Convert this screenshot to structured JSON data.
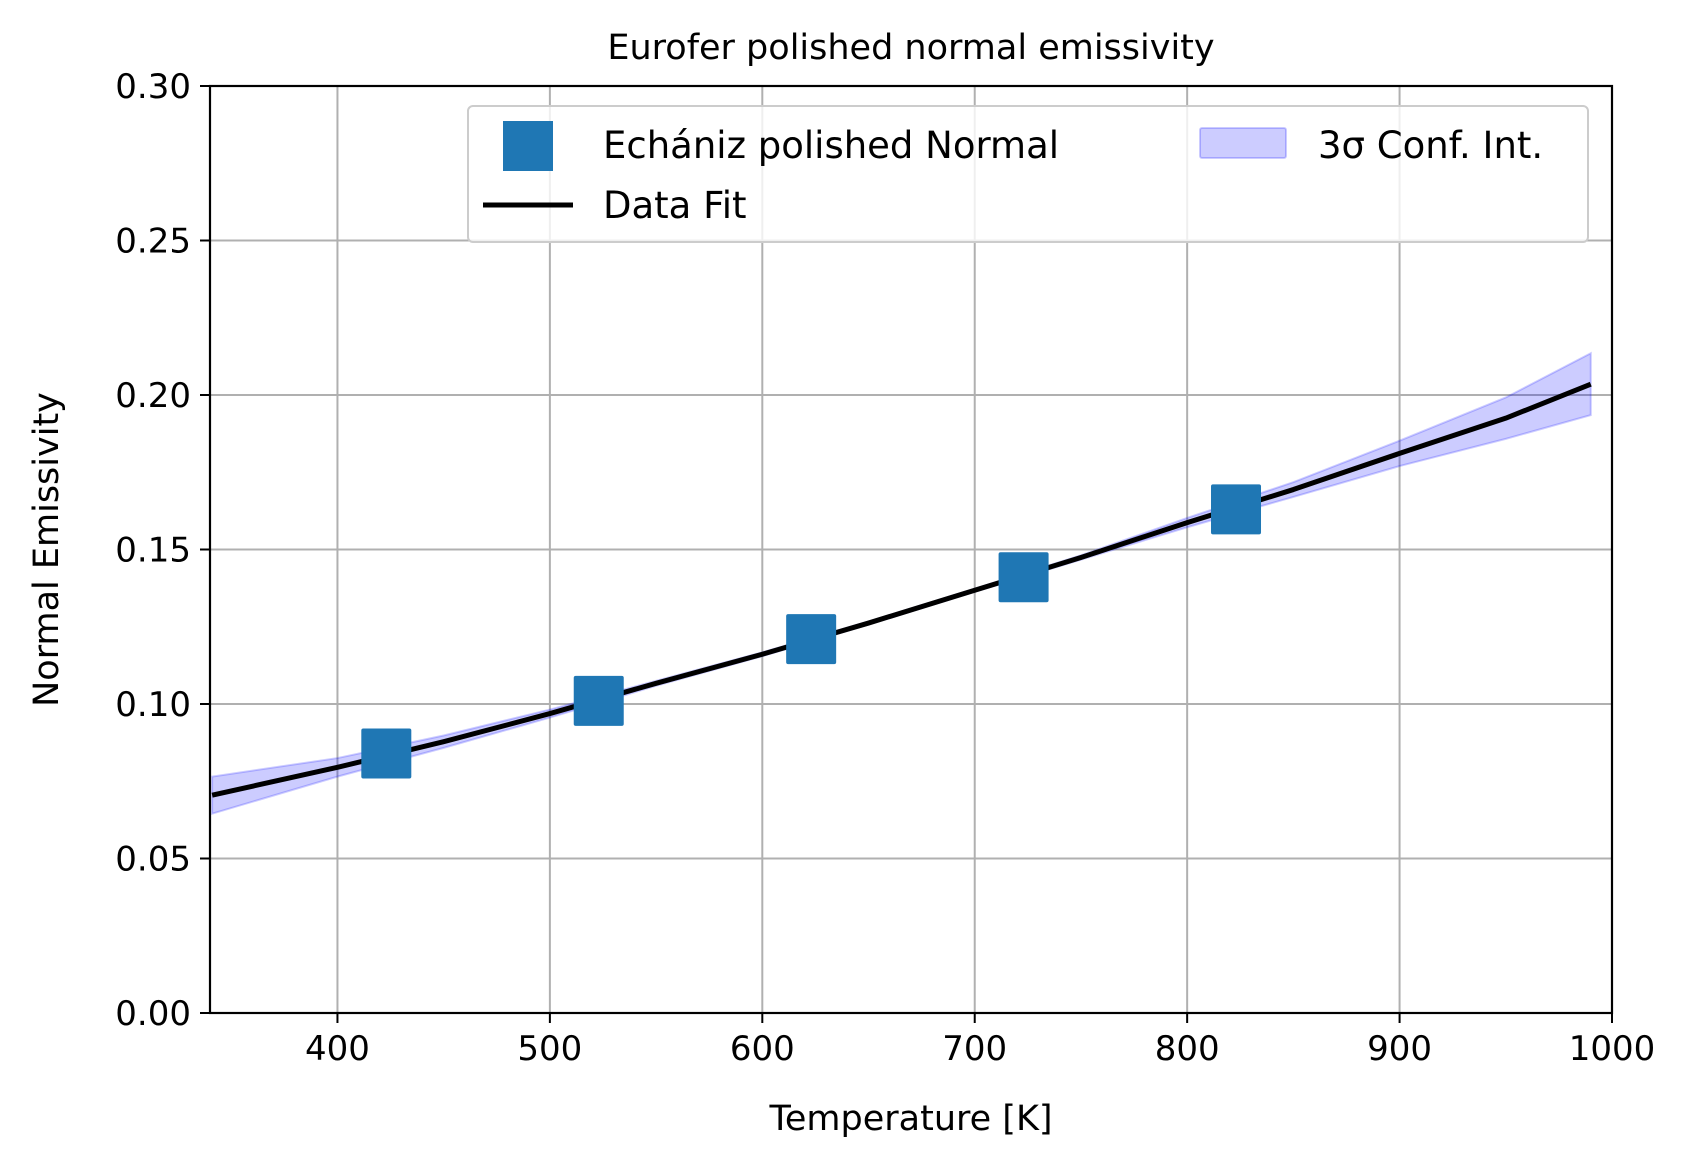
{
  "chart_data": {
    "type": "line",
    "title": "Eurofer polished normal emissivity",
    "xlabel": "Temperature [K]",
    "ylabel": "Normal Emissivity",
    "xlim": [
      340,
      1000
    ],
    "ylim": [
      0.0,
      0.3
    ],
    "xticks": [
      400,
      500,
      600,
      700,
      800,
      900,
      1000
    ],
    "xtick_labels": [
      "400",
      "500",
      "600",
      "700",
      "800",
      "900",
      "1000"
    ],
    "yticks": [
      0.0,
      0.05,
      0.1,
      0.15,
      0.2,
      0.25,
      0.3
    ],
    "ytick_labels": [
      "0.00",
      "0.05",
      "0.10",
      "0.15",
      "0.20",
      "0.25",
      "0.30"
    ],
    "grid": true,
    "legend_position": "top-right",
    "series": [
      {
        "name": "Echániz polished Normal",
        "kind": "scatter",
        "marker": "square",
        "color": "#1f77b4",
        "x": [
          423,
          523,
          623,
          723,
          823
        ],
        "y": [
          0.084,
          0.101,
          0.121,
          0.141,
          0.163
        ]
      },
      {
        "name": "Data Fit",
        "kind": "line",
        "color": "#000000",
        "x": [
          341,
          400,
          450,
          500,
          550,
          600,
          650,
          700,
          750,
          800,
          850,
          900,
          950,
          990
        ],
        "y": [
          0.0705,
          0.0795,
          0.0878,
          0.0969,
          0.1067,
          0.1161,
          0.1262,
          0.1368,
          0.1474,
          0.1587,
          0.1694,
          0.1811,
          0.1925,
          0.2035
        ]
      },
      {
        "name": "3σ Conf. Int.",
        "kind": "band",
        "color": "#0000ff",
        "x": [
          341,
          400,
          450,
          500,
          550,
          600,
          650,
          700,
          750,
          800,
          850,
          900,
          950,
          990
        ],
        "lower": [
          0.0645,
          0.0765,
          0.0858,
          0.0956,
          0.1059,
          0.1155,
          0.1257,
          0.1363,
          0.1467,
          0.1572,
          0.167,
          0.177,
          0.1858,
          0.1935
        ],
        "upper": [
          0.0765,
          0.0825,
          0.0898,
          0.0982,
          0.1075,
          0.1167,
          0.1267,
          0.1373,
          0.1481,
          0.1602,
          0.1718,
          0.1852,
          0.1992,
          0.2135
        ]
      }
    ],
    "legend": {
      "col1": [
        "Echániz polished Normal",
        "Data Fit"
      ],
      "col2": [
        "3σ Conf. Int."
      ]
    }
  }
}
